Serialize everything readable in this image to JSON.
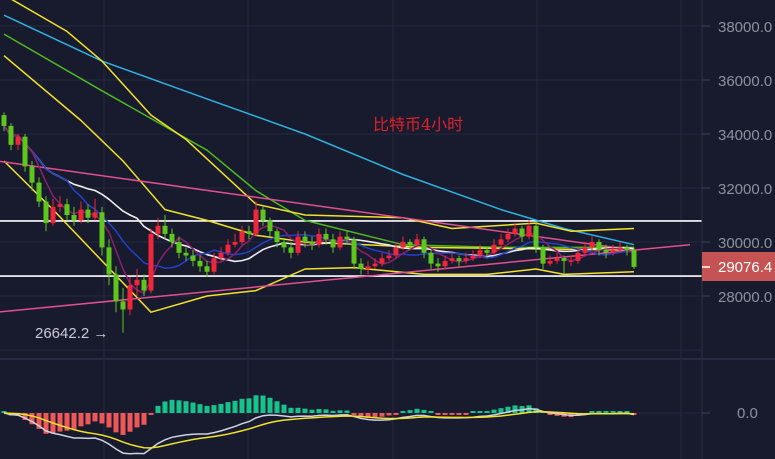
{
  "chart_data": {
    "type": "candlestick",
    "title": "比特币4小时",
    "y_ticks": [
      "38000.0",
      "36000.0",
      "34000.0",
      "32000.0",
      "30000.0",
      "28000.0"
    ],
    "y_tick_values": [
      38000,
      36000,
      34000,
      32000,
      30000,
      28000
    ],
    "macd_ticks": [
      "0.0"
    ],
    "last_price": "29076.4",
    "low_annotation": "26642.2 →",
    "low_value": 26642.2,
    "grid": true,
    "colors": {
      "background": "#181b2e",
      "up": "#f0263a",
      "down": "#5fc61e",
      "grid": "#232840",
      "price_tag": "#c65353",
      "ma_fast": "#8c1f6e",
      "ma_mid": "#2340c8",
      "ma_slow": "#eeeeee",
      "ma_long": "#30b0e0",
      "ma_green": "#4fb820",
      "bollinger": "#f2e22a",
      "trend": "#e0508f",
      "level": "#ffffff",
      "macd_pos": "#17c38d",
      "macd_neg": "#ef5858",
      "dif": "#cfd2e0",
      "dea": "#f2e22a"
    },
    "ohlc": [
      [
        34700,
        34800,
        34100,
        34300
      ],
      [
        34300,
        34400,
        33400,
        33600
      ],
      [
        33600,
        34000,
        33400,
        33900
      ],
      [
        33900,
        34000,
        32600,
        32800
      ],
      [
        32800,
        33000,
        31900,
        32200
      ],
      [
        32200,
        32400,
        31300,
        31500
      ],
      [
        31500,
        31700,
        30400,
        30700
      ],
      [
        30700,
        31600,
        30600,
        31300
      ],
      [
        31300,
        31700,
        31100,
        31400
      ],
      [
        31400,
        31600,
        30800,
        31000
      ],
      [
        31000,
        31300,
        30600,
        30800
      ],
      [
        30800,
        31500,
        30700,
        31200
      ],
      [
        31200,
        31400,
        30700,
        30900
      ],
      [
        30900,
        31600,
        30800,
        31100
      ],
      [
        31100,
        31300,
        29500,
        29800
      ],
      [
        29800,
        30100,
        28400,
        28800
      ],
      [
        28800,
        29100,
        27400,
        27800
      ],
      [
        27800,
        28300,
        26642.2,
        27500
      ],
      [
        27500,
        28700,
        27300,
        28400
      ],
      [
        28400,
        29000,
        28000,
        28600
      ],
      [
        28600,
        28800,
        28000,
        28200
      ],
      [
        28200,
        30500,
        28100,
        30300
      ],
      [
        30300,
        30900,
        30100,
        30600
      ],
      [
        30600,
        31000,
        30100,
        30300
      ],
      [
        30300,
        30500,
        29800,
        30000
      ],
      [
        30000,
        30200,
        29400,
        29600
      ],
      [
        29600,
        29800,
        29300,
        29500
      ],
      [
        29500,
        29700,
        29100,
        29300
      ],
      [
        29300,
        29500,
        28900,
        29100
      ],
      [
        29100,
        29300,
        28700,
        28900
      ],
      [
        28900,
        29600,
        28800,
        29400
      ],
      [
        29400,
        29800,
        29300,
        29600
      ],
      [
        29600,
        30100,
        29500,
        29900
      ],
      [
        29900,
        30300,
        29800,
        30000
      ],
      [
        30000,
        30600,
        29900,
        30400
      ],
      [
        30400,
        30600,
        30100,
        30300
      ],
      [
        30300,
        31500,
        30200,
        31200
      ],
      [
        31200,
        31300,
        30600,
        30800
      ],
      [
        30800,
        30900,
        30200,
        30400
      ],
      [
        30400,
        30500,
        29800,
        30000
      ],
      [
        30000,
        30100,
        29600,
        29800
      ],
      [
        29800,
        30000,
        29400,
        29600
      ],
      [
        29600,
        30400,
        29500,
        30200
      ],
      [
        30200,
        30400,
        29800,
        30000
      ],
      [
        30000,
        30200,
        29700,
        29900
      ],
      [
        29900,
        30500,
        29800,
        30300
      ],
      [
        30300,
        30500,
        29900,
        30100
      ],
      [
        30100,
        30300,
        29600,
        29800
      ],
      [
        29800,
        30400,
        29700,
        30200
      ],
      [
        30200,
        30400,
        29900,
        30100
      ],
      [
        30100,
        30200,
        29000,
        29200
      ],
      [
        29200,
        29400,
        28800,
        29000
      ],
      [
        29000,
        29300,
        28800,
        29100
      ],
      [
        29100,
        29400,
        29000,
        29200
      ],
      [
        29200,
        29600,
        29100,
        29400
      ],
      [
        29400,
        29700,
        29300,
        29500
      ],
      [
        29500,
        30000,
        29400,
        29800
      ],
      [
        29800,
        30200,
        29700,
        30000
      ],
      [
        30000,
        30100,
        29700,
        29900
      ],
      [
        29900,
        30300,
        29800,
        30100
      ],
      [
        30100,
        30200,
        29400,
        29600
      ],
      [
        29600,
        29700,
        29000,
        29200
      ],
      [
        29200,
        29400,
        28900,
        29100
      ],
      [
        29100,
        29500,
        29000,
        29300
      ],
      [
        29300,
        29600,
        29200,
        29400
      ],
      [
        29400,
        29500,
        29100,
        29300
      ],
      [
        29300,
        29600,
        29200,
        29400
      ],
      [
        29400,
        29700,
        29300,
        29500
      ],
      [
        29500,
        29900,
        29400,
        29700
      ],
      [
        29700,
        29800,
        29400,
        29600
      ],
      [
        29600,
        30100,
        29500,
        29900
      ],
      [
        29900,
        30300,
        29800,
        30100
      ],
      [
        30100,
        30500,
        30000,
        30300
      ],
      [
        30300,
        30700,
        30200,
        30500
      ],
      [
        30500,
        30600,
        30000,
        30200
      ],
      [
        30200,
        30800,
        30100,
        30600
      ],
      [
        30600,
        30700,
        29600,
        29800
      ],
      [
        29800,
        29900,
        29000,
        29200
      ],
      [
        29200,
        29500,
        29100,
        29300
      ],
      [
        29300,
        29600,
        29200,
        29400
      ],
      [
        29400,
        29500,
        28800,
        29300
      ],
      [
        29300,
        29500,
        29100,
        29300
      ],
      [
        29300,
        29800,
        29200,
        29600
      ],
      [
        29600,
        30000,
        29500,
        29800
      ],
      [
        29800,
        30200,
        29700,
        30000
      ],
      [
        30000,
        30100,
        29500,
        29700
      ],
      [
        29700,
        29900,
        29400,
        29600
      ],
      [
        29600,
        29900,
        29500,
        29700
      ],
      [
        29700,
        30000,
        29600,
        29800
      ],
      [
        29800,
        29900,
        29500,
        29700
      ],
      [
        29700,
        29800,
        29000,
        29076.4
      ]
    ],
    "overlay_lines": [
      {
        "key": "ma_long",
        "points": [
          [
            0,
            38400
          ],
          [
            14,
            36700
          ],
          [
            29,
            35300
          ],
          [
            43,
            34000
          ],
          [
            57,
            32500
          ],
          [
            71,
            31200
          ],
          [
            80,
            30500
          ],
          [
            90,
            29900
          ]
        ]
      },
      {
        "key": "ma_green",
        "points": [
          [
            0,
            37700
          ],
          [
            14,
            35600
          ],
          [
            29,
            33400
          ],
          [
            36,
            31900
          ],
          [
            43,
            30800
          ],
          [
            57,
            29900
          ],
          [
            71,
            29800
          ],
          [
            90,
            29800
          ]
        ]
      },
      {
        "key": "bollinger",
        "points": [
          [
            1,
            39000
          ],
          [
            9,
            37800
          ],
          [
            14,
            36700
          ],
          [
            21,
            34700
          ],
          [
            26,
            33800
          ],
          [
            36,
            31400
          ],
          [
            43,
            31000
          ],
          [
            57,
            30900
          ],
          [
            64,
            30500
          ],
          [
            76,
            30700
          ],
          [
            81,
            30400
          ],
          [
            90,
            30500
          ]
        ]
      },
      {
        "key": "bollinger",
        "points": [
          [
            0,
            33000
          ],
          [
            7,
            31200
          ],
          [
            14,
            29300
          ],
          [
            21,
            27400
          ],
          [
            29,
            28000
          ],
          [
            36,
            28200
          ],
          [
            43,
            29000
          ],
          [
            50,
            29050
          ],
          [
            60,
            28800
          ],
          [
            69,
            28800
          ],
          [
            76,
            29000
          ],
          [
            80,
            28800
          ],
          [
            90,
            28900
          ]
        ]
      },
      {
        "key": "bollinger",
        "points": [
          [
            0,
            36900
          ],
          [
            11,
            34500
          ],
          [
            17,
            33000
          ],
          [
            23,
            31200
          ],
          [
            29,
            30800
          ],
          [
            36,
            30250
          ],
          [
            43,
            30000
          ],
          [
            60,
            29800
          ],
          [
            90,
            29700
          ]
        ]
      }
    ],
    "trend_lines": [
      [
        [
          -1,
          33000
        ],
        [
          90,
          29700
        ]
      ],
      [
        [
          -1,
          27400
        ],
        [
          98,
          29900
        ]
      ]
    ],
    "horizontal_levels": [
      30780,
      28740
    ],
    "ma_periods": {
      "ma_fast": 5,
      "ma_mid": 10,
      "ma_slow": 20
    }
  }
}
